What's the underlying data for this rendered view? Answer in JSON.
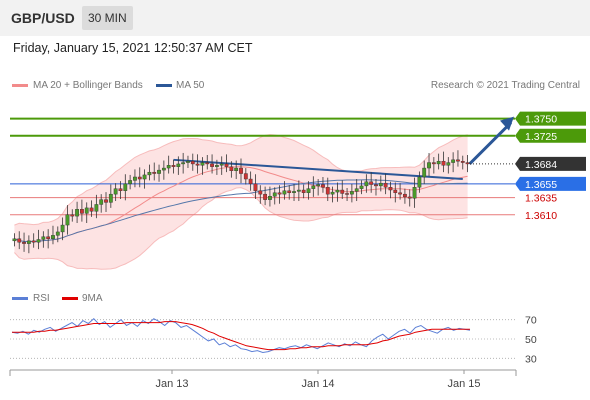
{
  "header": {
    "symbol": "GBP/USD",
    "timeframe": "30 MIN"
  },
  "timestamp": "Friday, January 15, 2021 12:50:37 AM CET",
  "legend": {
    "ma20": {
      "label": "MA 20 + Bollinger Bands",
      "color": "#f28b8b"
    },
    "ma50": {
      "label": "MA 50",
      "color": "#2b5797"
    },
    "copyright": "Research © 2021 Trading Central"
  },
  "rsi_legend": {
    "rsi": {
      "label": "RSI",
      "color": "#5b7fd6"
    },
    "ma9": {
      "label": "9MA",
      "color": "#e00000"
    }
  },
  "chart_data": [
    {
      "type": "candlestick",
      "y_range": [
        1.3515,
        1.378
      ],
      "x_labels": [
        "Jan 13",
        "Jan 14",
        "Jan 15"
      ],
      "current_price": "1.3684",
      "levels": [
        {
          "value": 1.375,
          "label": "1.3750",
          "kind": "resistance"
        },
        {
          "value": 1.3725,
          "label": "1.3725",
          "kind": "resistance"
        },
        {
          "value": 1.3655,
          "label": "1.3655",
          "kind": "pivot"
        },
        {
          "value": 1.3635,
          "label": "1.3635",
          "kind": "support"
        },
        {
          "value": 1.361,
          "label": "1.3610",
          "kind": "support"
        }
      ],
      "closes": [
        1.3575,
        1.357,
        1.3568,
        1.3572,
        1.357,
        1.3574,
        1.3578,
        1.3575,
        1.358,
        1.3585,
        1.3595,
        1.361,
        1.3608,
        1.3618,
        1.3612,
        1.362,
        1.3615,
        1.3625,
        1.3632,
        1.3628,
        1.364,
        1.3648,
        1.3645,
        1.3655,
        1.366,
        1.3665,
        1.3662,
        1.3668,
        1.3672,
        1.367,
        1.3675,
        1.3678,
        1.3682,
        1.368,
        1.3684,
        1.3686,
        1.3688,
        1.3684,
        1.3682,
        1.3686,
        1.3684,
        1.368,
        1.3682,
        1.3684,
        1.368,
        1.3674,
        1.3678,
        1.367,
        1.3662,
        1.3655,
        1.3645,
        1.364,
        1.3632,
        1.3637,
        1.3642,
        1.364,
        1.3645,
        1.3642,
        1.3644,
        1.3646,
        1.3642,
        1.3648,
        1.3652,
        1.3654,
        1.365,
        1.364,
        1.3643,
        1.3646,
        1.3641,
        1.364,
        1.3644,
        1.3648,
        1.3652,
        1.3658,
        1.3654,
        1.3652,
        1.3656,
        1.365,
        1.3646,
        1.3642,
        1.364,
        1.3636,
        1.3634,
        1.365,
        1.3665,
        1.3678,
        1.3686,
        1.3684,
        1.3688,
        1.3682,
        1.3686,
        1.369,
        1.3688,
        1.3686,
        1.3684
      ]
    },
    {
      "type": "line",
      "name": "RSI",
      "y_range": [
        20,
        80
      ],
      "y_ticks": [
        70,
        50,
        30
      ],
      "series": [
        {
          "name": "RSI",
          "values": [
            57,
            56,
            58,
            55,
            59,
            57,
            60,
            62,
            58,
            61,
            64,
            67,
            63,
            69,
            66,
            71,
            65,
            68,
            62,
            66,
            70,
            64,
            67,
            63,
            69,
            66,
            71,
            68,
            64,
            69,
            67,
            62,
            64,
            60,
            56,
            52,
            48,
            50,
            44,
            46,
            42,
            44,
            40,
            39,
            37,
            38,
            36,
            37,
            39,
            41,
            40,
            42,
            43,
            41,
            44,
            42,
            40,
            43,
            46,
            44,
            42,
            45,
            43,
            47,
            44,
            42,
            48,
            52,
            55,
            50,
            54,
            58,
            60,
            56,
            62,
            64,
            60,
            58,
            56,
            60,
            62,
            59,
            61,
            60,
            59
          ]
        },
        {
          "name": "9MA",
          "values": [
            57,
            57,
            57,
            57,
            57,
            58,
            58,
            59,
            59,
            60,
            61,
            62,
            63,
            64,
            65,
            66,
            66,
            66,
            66,
            66,
            66,
            67,
            67,
            67,
            67,
            67,
            67,
            67,
            68,
            68,
            68,
            67,
            66,
            65,
            63,
            61,
            58,
            56,
            53,
            51,
            49,
            47,
            45,
            43,
            42,
            41,
            40,
            39,
            39,
            39,
            39,
            40,
            40,
            41,
            41,
            42,
            42,
            42,
            43,
            43,
            43,
            44,
            44,
            44,
            44,
            44,
            45,
            46,
            48,
            49,
            51,
            53,
            54,
            55,
            57,
            58,
            59,
            60,
            60,
            60,
            60,
            60,
            60,
            60,
            60
          ]
        }
      ]
    }
  ]
}
